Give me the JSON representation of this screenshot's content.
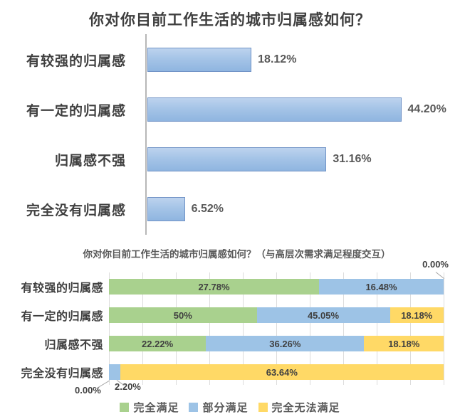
{
  "chart_data": [
    {
      "type": "bar",
      "orientation": "horizontal",
      "title": "你对你目前工作生活的城市归属感如何？",
      "categories": [
        "有较强的归属感",
        "有一定的归属感",
        "归属感不强",
        "完全没有归属感"
      ],
      "values": [
        18.12,
        44.2,
        31.16,
        6.52
      ],
      "value_labels": [
        "18.12%",
        "44.20%",
        "31.16%",
        "6.52%"
      ],
      "xlim": [
        0,
        45
      ],
      "bar_color": "#9dc3e6",
      "grid": false,
      "legend": false
    },
    {
      "type": "bar",
      "subtype": "stacked-normalized",
      "orientation": "horizontal",
      "title": "你对你目前工作生活的城市归属感如何？（与高层次需求满足程度交互）",
      "categories": [
        "有较强的归属感",
        "有一定的归属感",
        "归属感不强",
        "完全没有归属感"
      ],
      "series": [
        {
          "name": "完全满足",
          "color": "#a9d18e",
          "values": [
            27.78,
            50,
            22.22,
            0
          ],
          "labels": [
            "27.78%",
            "50%",
            "22.22%",
            "0.00%"
          ]
        },
        {
          "name": "部分满足",
          "color": "#9dc3e6",
          "values": [
            16.48,
            45.05,
            36.26,
            2.2
          ],
          "labels": [
            "16.48%",
            "45.05%",
            "36.26%",
            "2.20%"
          ]
        },
        {
          "name": "完全无法满足",
          "color": "#ffd966",
          "values": [
            0,
            18.18,
            18.18,
            63.64
          ],
          "labels": [
            "0.00%",
            "18.18%",
            "18.18%",
            "63.64%"
          ]
        }
      ],
      "callouts": [
        {
          "label": "0.00%",
          "series": "完全无法满足",
          "category": "有较强的归属感",
          "position": "top-right"
        },
        {
          "label": "0.00%",
          "series": "完全满足",
          "category": "完全没有归属感",
          "position": "bottom-left"
        },
        {
          "label": "2.20%",
          "series": "部分满足",
          "category": "完全没有归属感",
          "position": "bottom"
        }
      ],
      "grid": true,
      "legend_position": "bottom"
    }
  ]
}
